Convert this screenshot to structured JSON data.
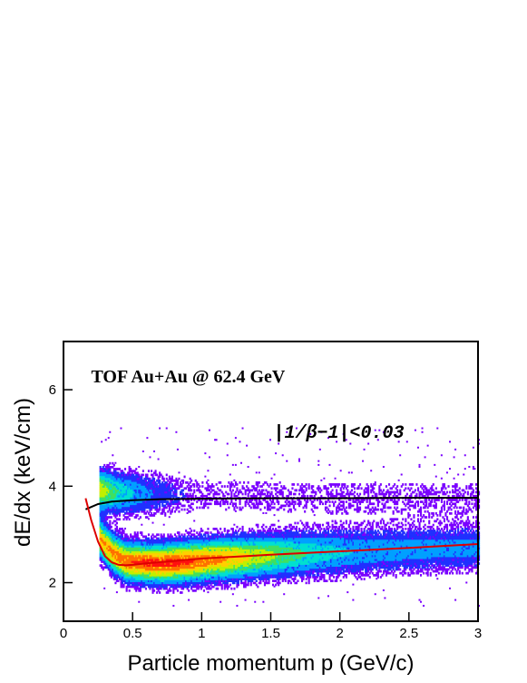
{
  "chart_data": {
    "type": "heatmap",
    "title": "",
    "xlabel": "Particle momentum p (GeV/c)",
    "ylabel": "dE/dx (keV/cm)",
    "xlim": [
      0,
      3
    ],
    "ylim": [
      1.2,
      7.0
    ],
    "x_ticks": [
      0,
      0.5,
      1,
      1.5,
      2,
      2.5,
      3
    ],
    "x_tick_labels": [
      "0",
      "0.5",
      "1",
      "1.5",
      "2",
      "2.5",
      "3"
    ],
    "y_ticks": [
      2,
      4,
      6
    ],
    "y_tick_labels": [
      "2",
      "4",
      "6"
    ],
    "grid": false,
    "legend": "none",
    "annotations": [
      {
        "text": "TOF Au+Au @ 62.4 GeV",
        "x": 0.2,
        "y": 6.15
      },
      {
        "text": "|1/β−1|<0.03",
        "x": 1.52,
        "y": 5.0
      }
    ],
    "colormap": [
      "#7a00ff",
      "#2030ff",
      "#00a0ff",
      "#00e0d0",
      "#40e060",
      "#c0f000",
      "#ffd000",
      "#ff7000",
      "#ff1010"
    ],
    "density_bands": [
      {
        "name": "electron",
        "x_range": [
          0.26,
          3.0
        ],
        "center": [
          [
            0.26,
            3.9
          ],
          [
            0.4,
            3.85
          ],
          [
            1.0,
            3.8
          ],
          [
            2.0,
            3.75
          ],
          [
            3.0,
            3.75
          ]
        ],
        "half_width": 0.38,
        "peak": 0.75
      },
      {
        "name": "pion",
        "x_range": [
          0.26,
          3.0
        ],
        "center": [
          [
            0.26,
            2.9
          ],
          [
            0.35,
            2.6
          ],
          [
            0.45,
            2.42
          ],
          [
            0.7,
            2.38
          ],
          [
            1.0,
            2.45
          ],
          [
            1.5,
            2.55
          ],
          [
            2.0,
            2.62
          ],
          [
            2.5,
            2.67
          ],
          [
            3.0,
            2.72
          ]
        ],
        "half_width": 0.33,
        "peak": 1.0
      }
    ],
    "series": [
      {
        "color": "#000000",
        "x": [
          0.16,
          0.25,
          0.35,
          0.5,
          0.7,
          1.0,
          1.5,
          2.0,
          2.5,
          3.0
        ],
        "y": [
          3.52,
          3.63,
          3.68,
          3.71,
          3.73,
          3.74,
          3.75,
          3.75,
          3.76,
          3.76
        ]
      },
      {
        "color": "#dd0000",
        "x": [
          0.16,
          0.2,
          0.25,
          0.3,
          0.35,
          0.4,
          0.45,
          0.5,
          0.6,
          0.8,
          1.0,
          1.5,
          2.0,
          2.5,
          3.0
        ],
        "y": [
          3.75,
          3.3,
          2.85,
          2.55,
          2.42,
          2.37,
          2.36,
          2.37,
          2.4,
          2.45,
          2.5,
          2.58,
          2.65,
          2.72,
          2.8
        ]
      }
    ]
  }
}
